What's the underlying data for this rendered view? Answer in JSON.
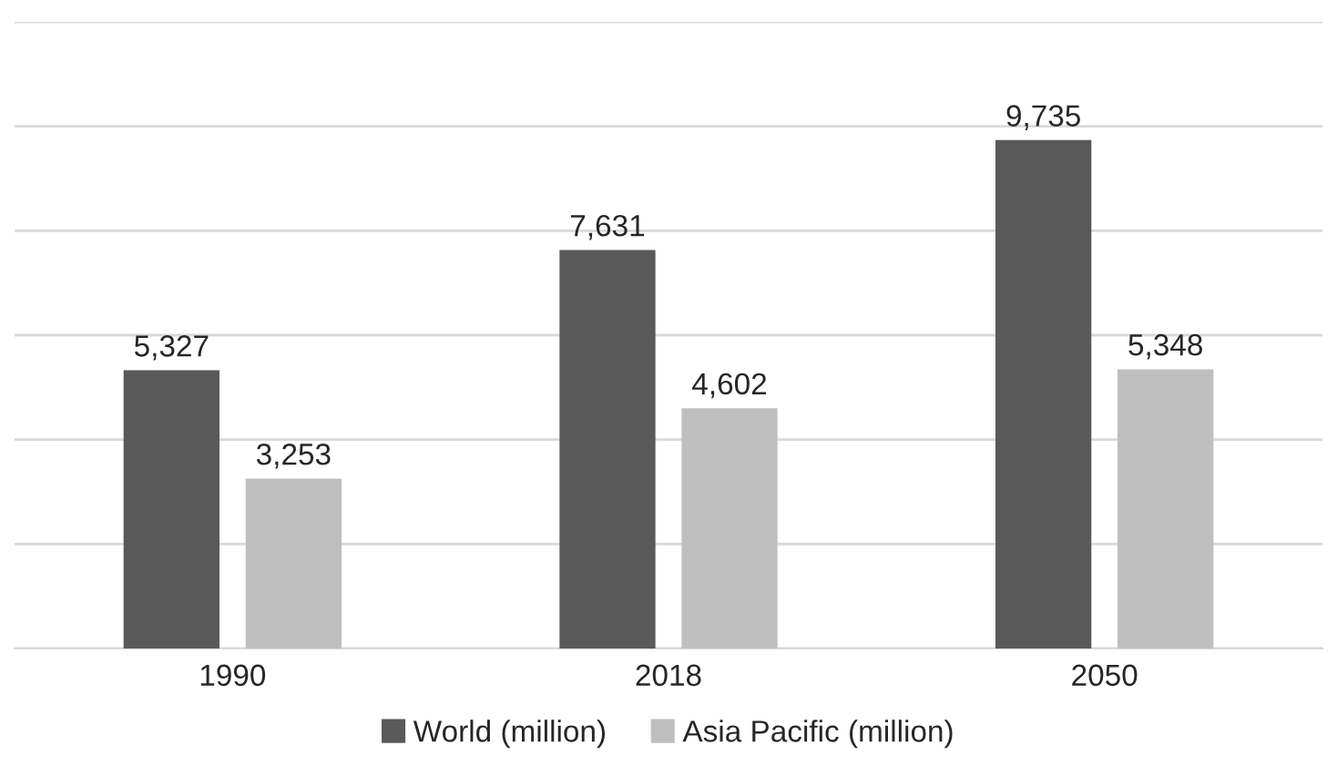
{
  "chart_data": {
    "type": "bar",
    "categories": [
      "1990",
      "2018",
      "2050"
    ],
    "series": [
      {
        "name": "World (million)",
        "color": "#595959",
        "values": [
          5327,
          7631,
          9735
        ],
        "value_labels": [
          "5,327",
          "7,631",
          "9,735"
        ]
      },
      {
        "name": "Asia Pacific (million)",
        "color": "#bfbfbf",
        "values": [
          3253,
          4602,
          5348
        ],
        "value_labels": [
          "3,253",
          "4,602",
          "5,348"
        ]
      }
    ],
    "ylim": [
      0,
      12000
    ],
    "yticks": [
      {
        "value": 0,
        "label": null
      },
      {
        "value": 2000,
        "label": null
      },
      {
        "value": 4000,
        "label": null
      },
      {
        "value": 6000,
        "label": null
      },
      {
        "value": 8000,
        "label": null
      },
      {
        "value": 10000,
        "label": null
      },
      {
        "value": 12000,
        "label": null
      }
    ],
    "tick_labels": "x",
    "grid": "y",
    "legend": "bottom"
  }
}
